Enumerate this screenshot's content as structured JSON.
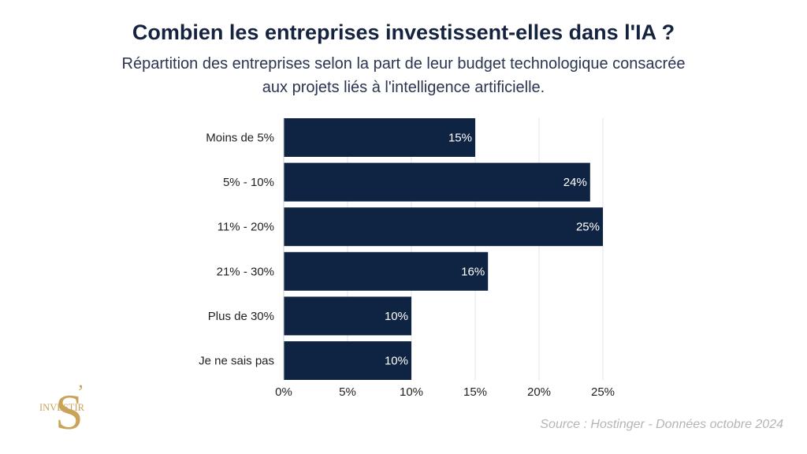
{
  "header": {
    "title": "Combien les entreprises investissent-elles dans l'IA ?",
    "subtitle": "Répartition des entreprises selon la part de leur budget technologique consacrée aux projets liés à l'intelligence artificielle."
  },
  "chart_data": {
    "type": "bar",
    "orientation": "horizontal",
    "categories": [
      "Moins de 5%",
      "5% - 10%",
      "11% - 20%",
      "21% - 30%",
      "Plus de 30%",
      "Je ne sais pas"
    ],
    "values": [
      15,
      24,
      25,
      16,
      10,
      10
    ],
    "value_labels": [
      "15%",
      "24%",
      "25%",
      "16%",
      "10%",
      "10%"
    ],
    "xticks": [
      "0%",
      "5%",
      "10%",
      "15%",
      "20%",
      "25%"
    ],
    "xlim": [
      0,
      25
    ],
    "grid": true,
    "bar_color": "#0f2342",
    "label_color": "#ffffff"
  },
  "footer": {
    "source": "Source : Hostinger - Données octobre 2024"
  },
  "logo": {
    "letter": "S",
    "apostrophe": "’",
    "word": "INVESTIR",
    "color": "#c9a35a"
  }
}
